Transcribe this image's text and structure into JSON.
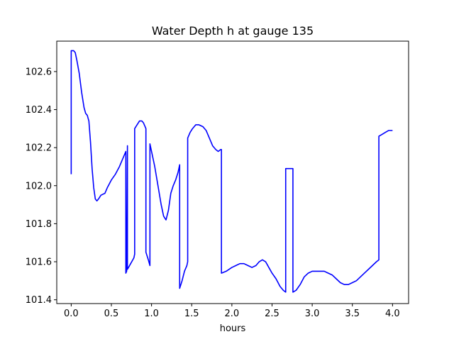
{
  "chart_data": {
    "type": "line",
    "title": "Water Depth h at gauge 135",
    "xlabel": "hours",
    "ylabel": "",
    "xlim": [
      -0.18,
      4.2
    ],
    "ylim": [
      101.38,
      102.76
    ],
    "xticks": [
      0.0,
      0.5,
      1.0,
      1.5,
      2.0,
      2.5,
      3.0,
      3.5,
      4.0
    ],
    "xtick_labels": [
      "0.0",
      "0.5",
      "1.0",
      "1.5",
      "2.0",
      "2.5",
      "3.0",
      "3.5",
      "4.0"
    ],
    "yticks": [
      101.4,
      101.6,
      101.8,
      102.0,
      102.2,
      102.4,
      102.6
    ],
    "ytick_labels": [
      "101.4",
      "101.6",
      "101.8",
      "102.0",
      "102.2",
      "102.4",
      "102.6"
    ],
    "grid": false,
    "legend": "none",
    "series": [
      {
        "name": "",
        "color": "#0000ff",
        "points": [
          [
            0.0,
            102.06
          ],
          [
            0.0,
            102.71
          ],
          [
            0.03,
            102.71
          ],
          [
            0.05,
            102.7
          ],
          [
            0.07,
            102.66
          ],
          [
            0.1,
            102.59
          ],
          [
            0.13,
            102.49
          ],
          [
            0.16,
            102.41
          ],
          [
            0.18,
            102.38
          ],
          [
            0.2,
            102.37
          ],
          [
            0.22,
            102.34
          ],
          [
            0.24,
            102.23
          ],
          [
            0.26,
            102.09
          ],
          [
            0.28,
            101.99
          ],
          [
            0.3,
            101.93
          ],
          [
            0.32,
            101.92
          ],
          [
            0.34,
            101.93
          ],
          [
            0.37,
            101.95
          ],
          [
            0.42,
            101.96
          ],
          [
            0.45,
            101.99
          ],
          [
            0.5,
            102.03
          ],
          [
            0.55,
            102.06
          ],
          [
            0.6,
            102.1
          ],
          [
            0.65,
            102.15
          ],
          [
            0.67,
            102.17
          ],
          [
            0.68,
            102.18
          ],
          [
            0.68,
            101.54
          ],
          [
            0.69,
            101.55
          ],
          [
            0.7,
            102.21
          ],
          [
            0.7,
            101.56
          ],
          [
            0.74,
            101.59
          ],
          [
            0.78,
            101.62
          ],
          [
            0.79,
            101.64
          ],
          [
            0.79,
            102.3
          ],
          [
            0.82,
            102.32
          ],
          [
            0.85,
            102.34
          ],
          [
            0.88,
            102.34
          ],
          [
            0.9,
            102.33
          ],
          [
            0.93,
            102.3
          ],
          [
            0.93,
            101.65
          ],
          [
            0.96,
            101.61
          ],
          [
            0.98,
            101.58
          ],
          [
            0.98,
            102.22
          ],
          [
            1.0,
            102.18
          ],
          [
            1.04,
            102.1
          ],
          [
            1.08,
            102.0
          ],
          [
            1.12,
            101.9
          ],
          [
            1.15,
            101.84
          ],
          [
            1.18,
            101.82
          ],
          [
            1.21,
            101.87
          ],
          [
            1.24,
            101.96
          ],
          [
            1.27,
            102.0
          ],
          [
            1.3,
            102.03
          ],
          [
            1.33,
            102.07
          ],
          [
            1.35,
            102.11
          ],
          [
            1.35,
            101.46
          ],
          [
            1.38,
            101.5
          ],
          [
            1.41,
            101.55
          ],
          [
            1.44,
            101.58
          ],
          [
            1.45,
            101.6
          ],
          [
            1.45,
            102.25
          ],
          [
            1.48,
            102.28
          ],
          [
            1.51,
            102.3
          ],
          [
            1.55,
            102.32
          ],
          [
            1.59,
            102.32
          ],
          [
            1.64,
            102.31
          ],
          [
            1.68,
            102.29
          ],
          [
            1.72,
            102.25
          ],
          [
            1.76,
            102.21
          ],
          [
            1.8,
            102.19
          ],
          [
            1.83,
            102.18
          ],
          [
            1.86,
            102.19
          ],
          [
            1.87,
            102.19
          ],
          [
            1.87,
            101.54
          ],
          [
            1.93,
            101.55
          ],
          [
            2.0,
            101.57
          ],
          [
            2.05,
            101.58
          ],
          [
            2.1,
            101.59
          ],
          [
            2.15,
            101.59
          ],
          [
            2.2,
            101.58
          ],
          [
            2.25,
            101.57
          ],
          [
            2.3,
            101.58
          ],
          [
            2.34,
            101.6
          ],
          [
            2.38,
            101.61
          ],
          [
            2.42,
            101.6
          ],
          [
            2.46,
            101.57
          ],
          [
            2.5,
            101.54
          ],
          [
            2.55,
            101.51
          ],
          [
            2.6,
            101.47
          ],
          [
            2.64,
            101.45
          ],
          [
            2.67,
            101.44
          ],
          [
            2.67,
            102.09
          ],
          [
            2.72,
            102.09
          ],
          [
            2.76,
            102.09
          ],
          [
            2.76,
            101.44
          ],
          [
            2.8,
            101.45
          ],
          [
            2.85,
            101.48
          ],
          [
            2.9,
            101.52
          ],
          [
            2.95,
            101.54
          ],
          [
            3.0,
            101.55
          ],
          [
            3.05,
            101.55
          ],
          [
            3.1,
            101.55
          ],
          [
            3.15,
            101.55
          ],
          [
            3.2,
            101.54
          ],
          [
            3.25,
            101.53
          ],
          [
            3.3,
            101.51
          ],
          [
            3.35,
            101.49
          ],
          [
            3.4,
            101.48
          ],
          [
            3.45,
            101.48
          ],
          [
            3.5,
            101.49
          ],
          [
            3.55,
            101.5
          ],
          [
            3.6,
            101.52
          ],
          [
            3.65,
            101.54
          ],
          [
            3.7,
            101.56
          ],
          [
            3.75,
            101.58
          ],
          [
            3.8,
            101.6
          ],
          [
            3.83,
            101.61
          ],
          [
            3.83,
            102.26
          ],
          [
            3.87,
            102.27
          ],
          [
            3.91,
            102.28
          ],
          [
            3.95,
            102.29
          ],
          [
            4.0,
            102.29
          ]
        ]
      }
    ]
  }
}
